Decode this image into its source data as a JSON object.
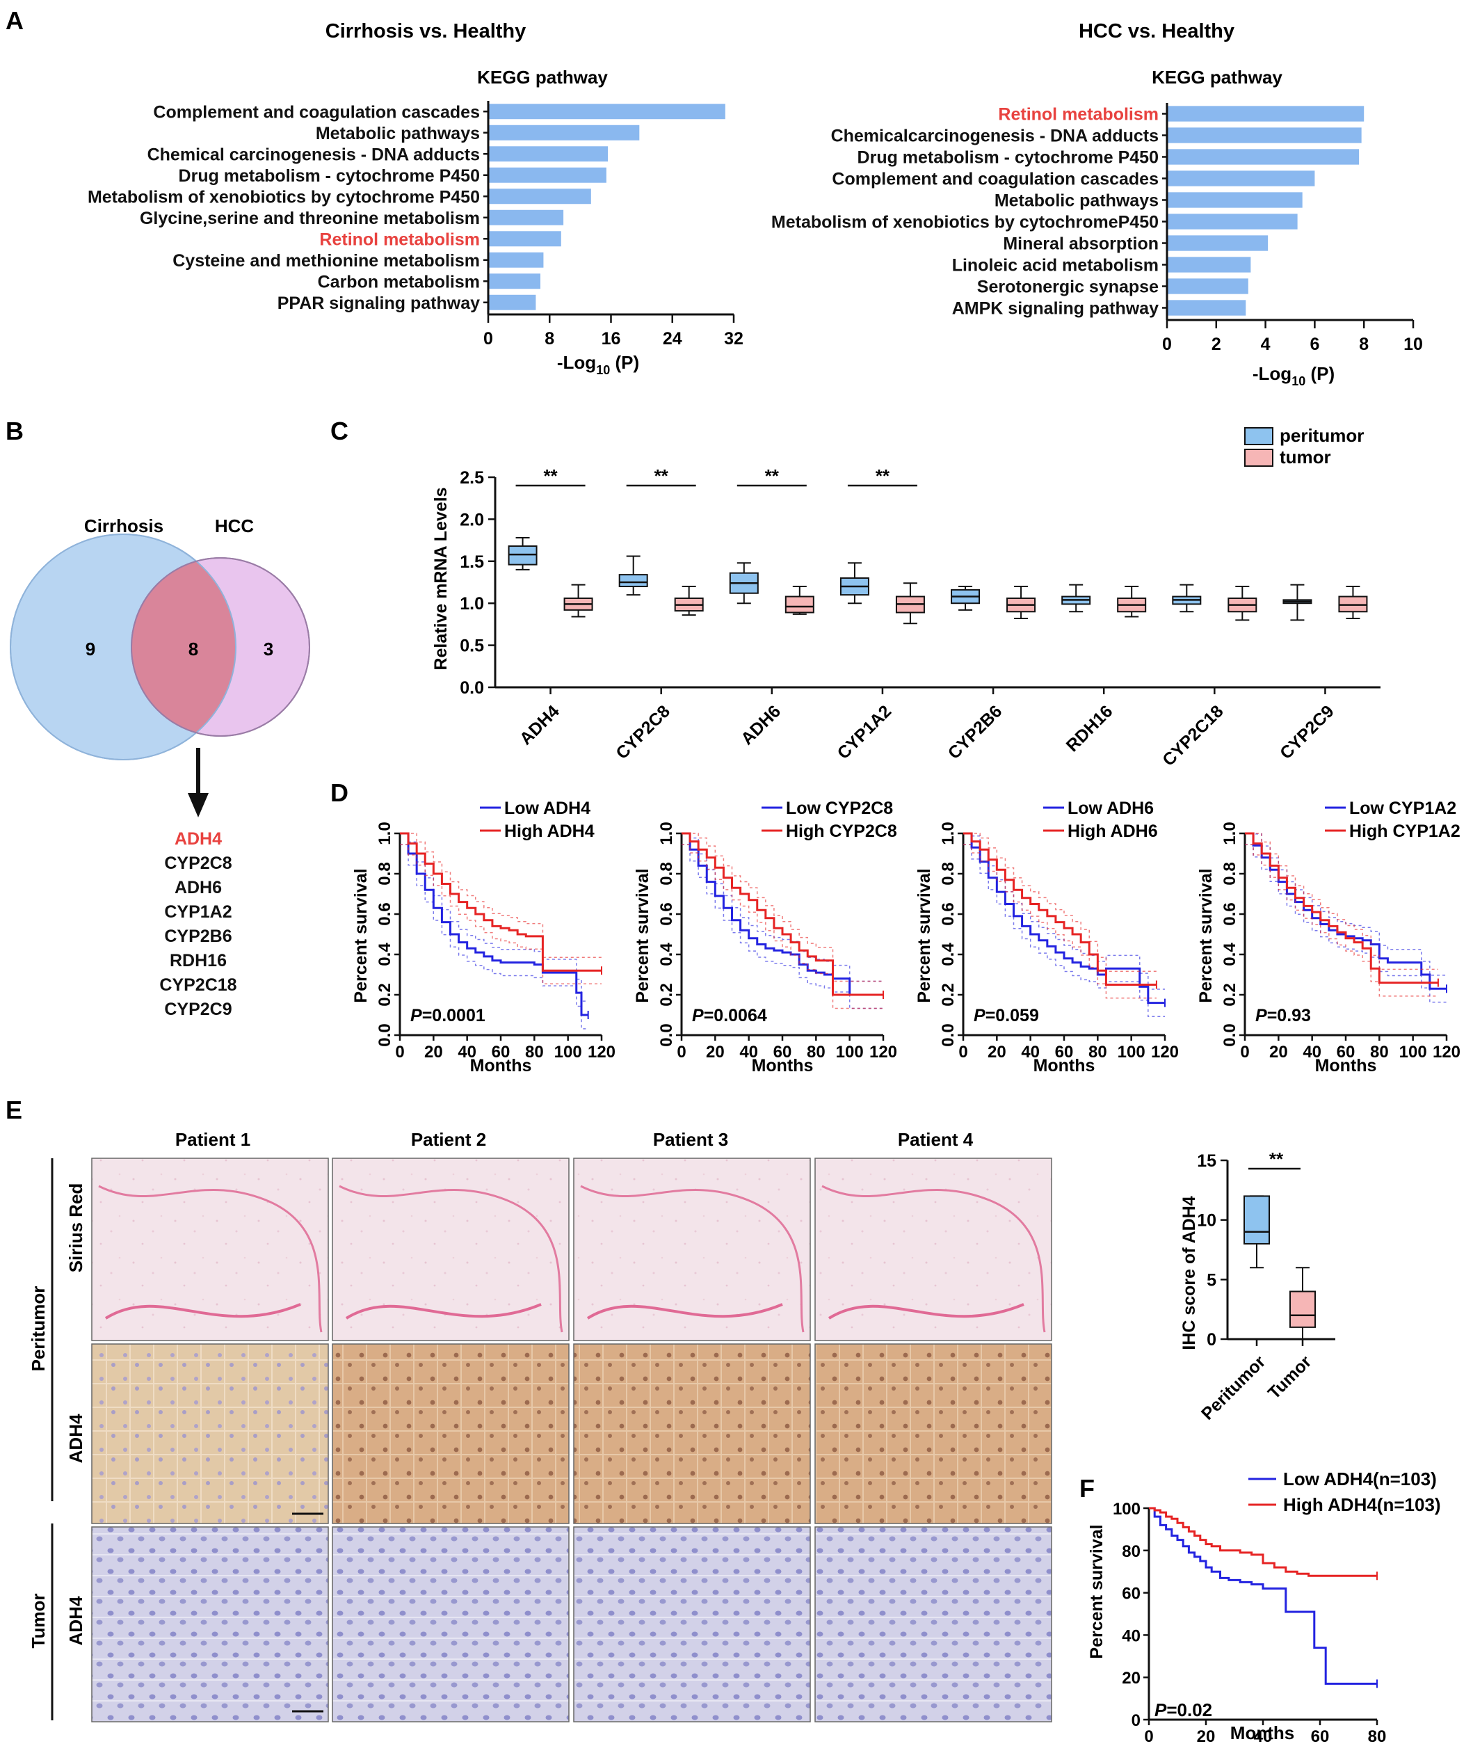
{
  "colors": {
    "bar": "#8ab8ef",
    "highlight": "#e8423f",
    "peritumor": "#8ec3ef",
    "tumor": "#f6b6b6",
    "low_line": "#2323e0",
    "high_line": "#e62424",
    "venn_left": "#b8d5f2",
    "venn_right": "#e9c5ee",
    "venn_overlap": "#d9859a"
  },
  "panels": {
    "A": "A",
    "B": "B",
    "C": "C",
    "D": "D",
    "E": "E",
    "F": "F"
  },
  "panelA": {
    "left": {
      "title": "Cirrhosis vs. Healthy",
      "subtitle": "KEGG pathway",
      "xlabel_main": "-Log",
      "xlabel_sub": "10",
      "xlabel_rest": " (P)",
      "highlight_index": 6
    },
    "right": {
      "title": "HCC vs. Healthy",
      "subtitle": "KEGG pathway",
      "xlabel_main": "-Log",
      "xlabel_sub": "10",
      "xlabel_rest": " (P)",
      "highlight_index": 0
    }
  },
  "panelB": {
    "left_label": "Cirrhosis",
    "right_label": "HCC",
    "left_only": "9",
    "overlap": "8",
    "right_only": "3",
    "genes": [
      "ADH4",
      "CYP2C8",
      "ADH6",
      "CYP1A2",
      "CYP2B6",
      "RDH16",
      "CYP2C18",
      "CYP2C9"
    ],
    "highlight_index": 0
  },
  "panelC": {
    "ylabel": "Relative mRNA Levels",
    "legend": [
      "peritumor",
      "tumor"
    ],
    "sig": "**"
  },
  "panelD": {
    "ylabel": "Percent survival",
    "xlabel": "Months"
  },
  "panelE": {
    "patients": [
      "Patient 1",
      "Patient 2",
      "Patient 3",
      "Patient 4"
    ],
    "group_peritumor": "Peritumor",
    "group_tumor": "Tumor",
    "row_labels": [
      "Sirius Red",
      "ADH4",
      "ADH4"
    ],
    "box_ylabel": "IHC score of ADH4",
    "box_categories": [
      "Peritumor",
      "Tumor"
    ],
    "sig": "**"
  },
  "panelF": {
    "ylabel": "Percent survival",
    "xlabel": "Months",
    "legend": [
      "Low ADH4(n=103)",
      "High ADH4(n=103)"
    ],
    "p_prefix": "P",
    "p_value": "=0.02"
  },
  "chart_data": [
    {
      "type": "bar",
      "orientation": "horizontal",
      "title": "Cirrhosis vs. Healthy",
      "subtitle": "KEGG pathway",
      "xlabel": "-Log10 (P)",
      "categories": [
        "Complement and coagulation cascades",
        "Metabolic pathways",
        "Chemical carcinogenesis - DNA adducts",
        "Drug metabolism - cytochrome P450",
        "Metabolism of xenobiotics by cytochrome P450",
        "Glycine,serine and threonine metabolism",
        "Retinol metabolism",
        "Cysteine and methionine metabolism",
        "Carbon metabolism",
        "PPAR signaling pathway"
      ],
      "values": [
        30.9,
        19.7,
        15.6,
        15.4,
        13.4,
        9.8,
        9.5,
        7.2,
        6.8,
        6.2
      ],
      "xlim": [
        0,
        32
      ],
      "xticks": [
        0,
        8,
        16,
        24,
        32
      ]
    },
    {
      "type": "bar",
      "orientation": "horizontal",
      "title": "HCC vs. Healthy",
      "subtitle": "KEGG pathway",
      "xlabel": "-Log10 (P)",
      "categories": [
        "Retinol metabolism",
        "Chemicalcarcinogenesis - DNA adducts",
        "Drug metabolism - cytochrome P450",
        "Complement and coagulation cascades",
        "Metabolic pathways",
        "Metabolism of xenobiotics by cytochromeP450",
        "Mineral absorption",
        "Linoleic acid metabolism",
        "Serotonergic synapse",
        "AMPK signaling pathway"
      ],
      "values": [
        8.0,
        7.9,
        7.8,
        6.0,
        5.5,
        5.3,
        4.1,
        3.4,
        3.3,
        3.2
      ],
      "xlim": [
        0,
        10
      ],
      "xticks": [
        0,
        2,
        4,
        6,
        8,
        10
      ]
    },
    {
      "type": "box",
      "ylabel": "Relative mRNA Levels",
      "ylim": [
        0,
        2.5
      ],
      "yticks": [
        0.0,
        0.5,
        1.0,
        1.5,
        2.0,
        2.5
      ],
      "categories": [
        "ADH4",
        "CYP2C8",
        "ADH6",
        "CYP1A2",
        "CYP2B6",
        "RDH16",
        "CYP2C18",
        "CYP2C9"
      ],
      "significant": [
        true,
        true,
        true,
        true,
        false,
        false,
        false,
        false
      ],
      "series": [
        {
          "name": "peritumor",
          "boxes": [
            {
              "min": 1.4,
              "q1": 1.46,
              "median": 1.58,
              "q3": 1.68,
              "max": 1.78
            },
            {
              "min": 1.1,
              "q1": 1.2,
              "median": 1.25,
              "q3": 1.34,
              "max": 1.56
            },
            {
              "min": 1.0,
              "q1": 1.12,
              "median": 1.24,
              "q3": 1.36,
              "max": 1.48
            },
            {
              "min": 1.0,
              "q1": 1.1,
              "median": 1.2,
              "q3": 1.3,
              "max": 1.48
            },
            {
              "min": 0.92,
              "q1": 1.0,
              "median": 1.08,
              "q3": 1.16,
              "max": 1.2
            },
            {
              "min": 0.9,
              "q1": 0.99,
              "median": 1.04,
              "q3": 1.08,
              "max": 1.22
            },
            {
              "min": 0.9,
              "q1": 0.99,
              "median": 1.04,
              "q3": 1.08,
              "max": 1.22
            },
            {
              "min": 0.8,
              "q1": 1.0,
              "median": 1.02,
              "q3": 1.04,
              "max": 1.22
            }
          ]
        },
        {
          "name": "tumor",
          "boxes": [
            {
              "min": 0.84,
              "q1": 0.92,
              "median": 0.99,
              "q3": 1.06,
              "max": 1.22
            },
            {
              "min": 0.86,
              "q1": 0.91,
              "median": 0.98,
              "q3": 1.06,
              "max": 1.2
            },
            {
              "min": 0.87,
              "q1": 0.89,
              "median": 0.96,
              "q3": 1.08,
              "max": 1.2
            },
            {
              "min": 0.76,
              "q1": 0.89,
              "median": 0.99,
              "q3": 1.08,
              "max": 1.24
            },
            {
              "min": 0.82,
              "q1": 0.9,
              "median": 0.98,
              "q3": 1.06,
              "max": 1.2
            },
            {
              "min": 0.84,
              "q1": 0.9,
              "median": 0.98,
              "q3": 1.06,
              "max": 1.2
            },
            {
              "min": 0.8,
              "q1": 0.9,
              "median": 0.98,
              "q3": 1.06,
              "max": 1.2
            },
            {
              "min": 0.82,
              "q1": 0.9,
              "median": 0.98,
              "q3": 1.08,
              "max": 1.2
            }
          ]
        }
      ]
    },
    {
      "type": "line",
      "subtype": "kaplan-meier",
      "ylabel": "Percent survival",
      "xlabel": "Months",
      "xlim": [
        0,
        120
      ],
      "ylim": [
        0,
        1.0
      ],
      "xticks": [
        0,
        20,
        40,
        60,
        80,
        100,
        120
      ],
      "yticks": [
        0.0,
        0.2,
        0.4,
        0.6,
        0.8,
        1.0
      ],
      "p_label": "P=0.0001",
      "series": [
        {
          "name": "Low ADH4",
          "color": "#2323e0",
          "x": [
            0,
            5,
            10,
            15,
            20,
            25,
            30,
            35,
            40,
            45,
            50,
            55,
            60,
            65,
            70,
            75,
            80,
            85,
            90,
            95,
            100,
            105,
            108,
            112
          ],
          "y": [
            1.0,
            0.9,
            0.8,
            0.72,
            0.63,
            0.56,
            0.5,
            0.46,
            0.43,
            0.41,
            0.39,
            0.37,
            0.36,
            0.36,
            0.36,
            0.36,
            0.35,
            0.31,
            0.31,
            0.31,
            0.31,
            0.21,
            0.1,
            0.1
          ]
        },
        {
          "name": "High ADH4",
          "color": "#e62424",
          "x": [
            0,
            5,
            10,
            15,
            20,
            25,
            30,
            35,
            40,
            45,
            50,
            55,
            60,
            65,
            70,
            75,
            80,
            85,
            90,
            100,
            110,
            120
          ],
          "y": [
            1.0,
            0.95,
            0.9,
            0.85,
            0.8,
            0.75,
            0.7,
            0.66,
            0.63,
            0.6,
            0.57,
            0.54,
            0.53,
            0.52,
            0.5,
            0.49,
            0.49,
            0.32,
            0.32,
            0.32,
            0.32,
            0.32
          ]
        }
      ]
    },
    {
      "type": "line",
      "subtype": "kaplan-meier",
      "ylabel": "Percent survival",
      "xlabel": "Months",
      "xlim": [
        0,
        120
      ],
      "ylim": [
        0,
        1.0
      ],
      "xticks": [
        0,
        20,
        40,
        60,
        80,
        100,
        120
      ],
      "yticks": [
        0.0,
        0.2,
        0.4,
        0.6,
        0.8,
        1.0
      ],
      "p_label": "P=0.0064",
      "series": [
        {
          "name": "Low CYP2C8",
          "color": "#2323e0",
          "x": [
            0,
            5,
            10,
            15,
            20,
            25,
            30,
            35,
            40,
            45,
            50,
            55,
            60,
            65,
            70,
            75,
            80,
            85,
            90,
            100,
            110,
            120
          ],
          "y": [
            1.0,
            0.92,
            0.84,
            0.76,
            0.69,
            0.63,
            0.57,
            0.52,
            0.48,
            0.45,
            0.43,
            0.42,
            0.41,
            0.4,
            0.35,
            0.32,
            0.31,
            0.3,
            0.28,
            0.2,
            0.2,
            0.2
          ]
        },
        {
          "name": "High CYP2C8",
          "color": "#e62424",
          "x": [
            0,
            5,
            10,
            15,
            20,
            25,
            30,
            35,
            40,
            45,
            50,
            55,
            60,
            65,
            70,
            75,
            80,
            85,
            90,
            100,
            110,
            120
          ],
          "y": [
            1.0,
            0.96,
            0.92,
            0.88,
            0.83,
            0.78,
            0.73,
            0.7,
            0.67,
            0.62,
            0.58,
            0.53,
            0.5,
            0.46,
            0.42,
            0.39,
            0.37,
            0.37,
            0.2,
            0.2,
            0.2,
            0.2
          ]
        }
      ]
    },
    {
      "type": "line",
      "subtype": "kaplan-meier",
      "ylabel": "Percent survival",
      "xlabel": "Months",
      "xlim": [
        0,
        120
      ],
      "ylim": [
        0,
        1.0
      ],
      "xticks": [
        0,
        20,
        40,
        60,
        80,
        100,
        120
      ],
      "yticks": [
        0.0,
        0.2,
        0.4,
        0.6,
        0.8,
        1.0
      ],
      "p_label": "P=0.059",
      "series": [
        {
          "name": "Low ADH6",
          "color": "#2323e0",
          "x": [
            0,
            5,
            10,
            15,
            20,
            25,
            30,
            35,
            40,
            45,
            50,
            55,
            60,
            65,
            70,
            75,
            80,
            85,
            90,
            100,
            105,
            110,
            120
          ],
          "y": [
            1.0,
            0.93,
            0.86,
            0.78,
            0.71,
            0.65,
            0.59,
            0.54,
            0.5,
            0.47,
            0.44,
            0.41,
            0.38,
            0.36,
            0.34,
            0.33,
            0.3,
            0.33,
            0.33,
            0.33,
            0.24,
            0.16,
            0.16
          ]
        },
        {
          "name": "High ADH6",
          "color": "#e62424",
          "x": [
            0,
            5,
            10,
            15,
            20,
            25,
            30,
            35,
            40,
            45,
            50,
            55,
            60,
            65,
            70,
            75,
            80,
            85,
            90,
            100,
            110,
            115
          ],
          "y": [
            1.0,
            0.96,
            0.92,
            0.87,
            0.82,
            0.77,
            0.72,
            0.68,
            0.65,
            0.62,
            0.59,
            0.56,
            0.53,
            0.5,
            0.46,
            0.4,
            0.32,
            0.25,
            0.25,
            0.25,
            0.25,
            0.25
          ]
        }
      ]
    },
    {
      "type": "line",
      "subtype": "kaplan-meier",
      "ylabel": "Percent survival",
      "xlabel": "Months",
      "xlim": [
        0,
        120
      ],
      "ylim": [
        0,
        1.0
      ],
      "xticks": [
        0,
        20,
        40,
        60,
        80,
        100,
        120
      ],
      "yticks": [
        0.0,
        0.2,
        0.4,
        0.6,
        0.8,
        1.0
      ],
      "p_label": "P=0.93",
      "series": [
        {
          "name": "Low CYP1A2",
          "color": "#2323e0",
          "x": [
            0,
            5,
            10,
            15,
            20,
            25,
            30,
            35,
            40,
            45,
            50,
            55,
            60,
            65,
            70,
            75,
            80,
            85,
            90,
            100,
            105,
            110,
            120
          ],
          "y": [
            1.0,
            0.94,
            0.88,
            0.82,
            0.76,
            0.7,
            0.66,
            0.62,
            0.58,
            0.55,
            0.52,
            0.5,
            0.49,
            0.48,
            0.47,
            0.45,
            0.38,
            0.36,
            0.36,
            0.36,
            0.3,
            0.23,
            0.23
          ]
        },
        {
          "name": "High CYP1A2",
          "color": "#e62424",
          "x": [
            0,
            5,
            10,
            15,
            20,
            25,
            30,
            35,
            40,
            45,
            50,
            55,
            60,
            65,
            70,
            75,
            80,
            85,
            90,
            100,
            110,
            115
          ],
          "y": [
            1.0,
            0.95,
            0.9,
            0.84,
            0.78,
            0.73,
            0.68,
            0.64,
            0.61,
            0.57,
            0.54,
            0.51,
            0.48,
            0.46,
            0.43,
            0.33,
            0.26,
            0.26,
            0.26,
            0.26,
            0.26,
            0.26
          ]
        }
      ]
    },
    {
      "type": "box",
      "ylabel": "IHC score of ADH4",
      "ylim": [
        0,
        15
      ],
      "yticks": [
        0,
        5,
        10,
        15
      ],
      "categories": [
        "Peritumor",
        "Tumor"
      ],
      "boxes": [
        {
          "min": 6,
          "q1": 8,
          "median": 9,
          "q3": 12,
          "max": 12
        },
        {
          "min": 0,
          "q1": 1,
          "median": 2,
          "q3": 4,
          "max": 6
        }
      ]
    },
    {
      "type": "line",
      "subtype": "kaplan-meier",
      "ylabel": "Percent survival",
      "xlabel": "Months",
      "xlim": [
        0,
        80
      ],
      "ylim": [
        0,
        100
      ],
      "xticks": [
        0,
        20,
        40,
        60,
        80
      ],
      "yticks": [
        0,
        20,
        40,
        60,
        80,
        100
      ],
      "p_label": "P=0.02",
      "series": [
        {
          "name": "Low ADH4(n=103)",
          "color": "#2323e0",
          "x": [
            0,
            2,
            4,
            6,
            8,
            10,
            12,
            14,
            16,
            18,
            20,
            22,
            25,
            28,
            32,
            36,
            40,
            44,
            48,
            52,
            55,
            58,
            62,
            66,
            70,
            80
          ],
          "y": [
            100,
            96,
            92,
            90,
            87,
            85,
            82,
            79,
            77,
            75,
            72,
            70,
            67,
            66,
            65,
            64,
            62,
            62,
            51,
            51,
            51,
            34,
            17,
            17,
            17,
            17
          ]
        },
        {
          "name": "High ADH4(n=103)",
          "color": "#e62424",
          "x": [
            0,
            2,
            4,
            6,
            8,
            10,
            12,
            14,
            16,
            18,
            20,
            22,
            25,
            28,
            32,
            36,
            40,
            44,
            48,
            52,
            56,
            62,
            70,
            80
          ],
          "y": [
            100,
            99,
            98,
            96,
            95,
            93,
            91,
            89,
            87,
            85,
            83,
            82,
            80,
            80,
            79,
            78,
            74,
            72,
            70,
            69,
            68,
            68,
            68,
            68
          ]
        }
      ]
    }
  ]
}
